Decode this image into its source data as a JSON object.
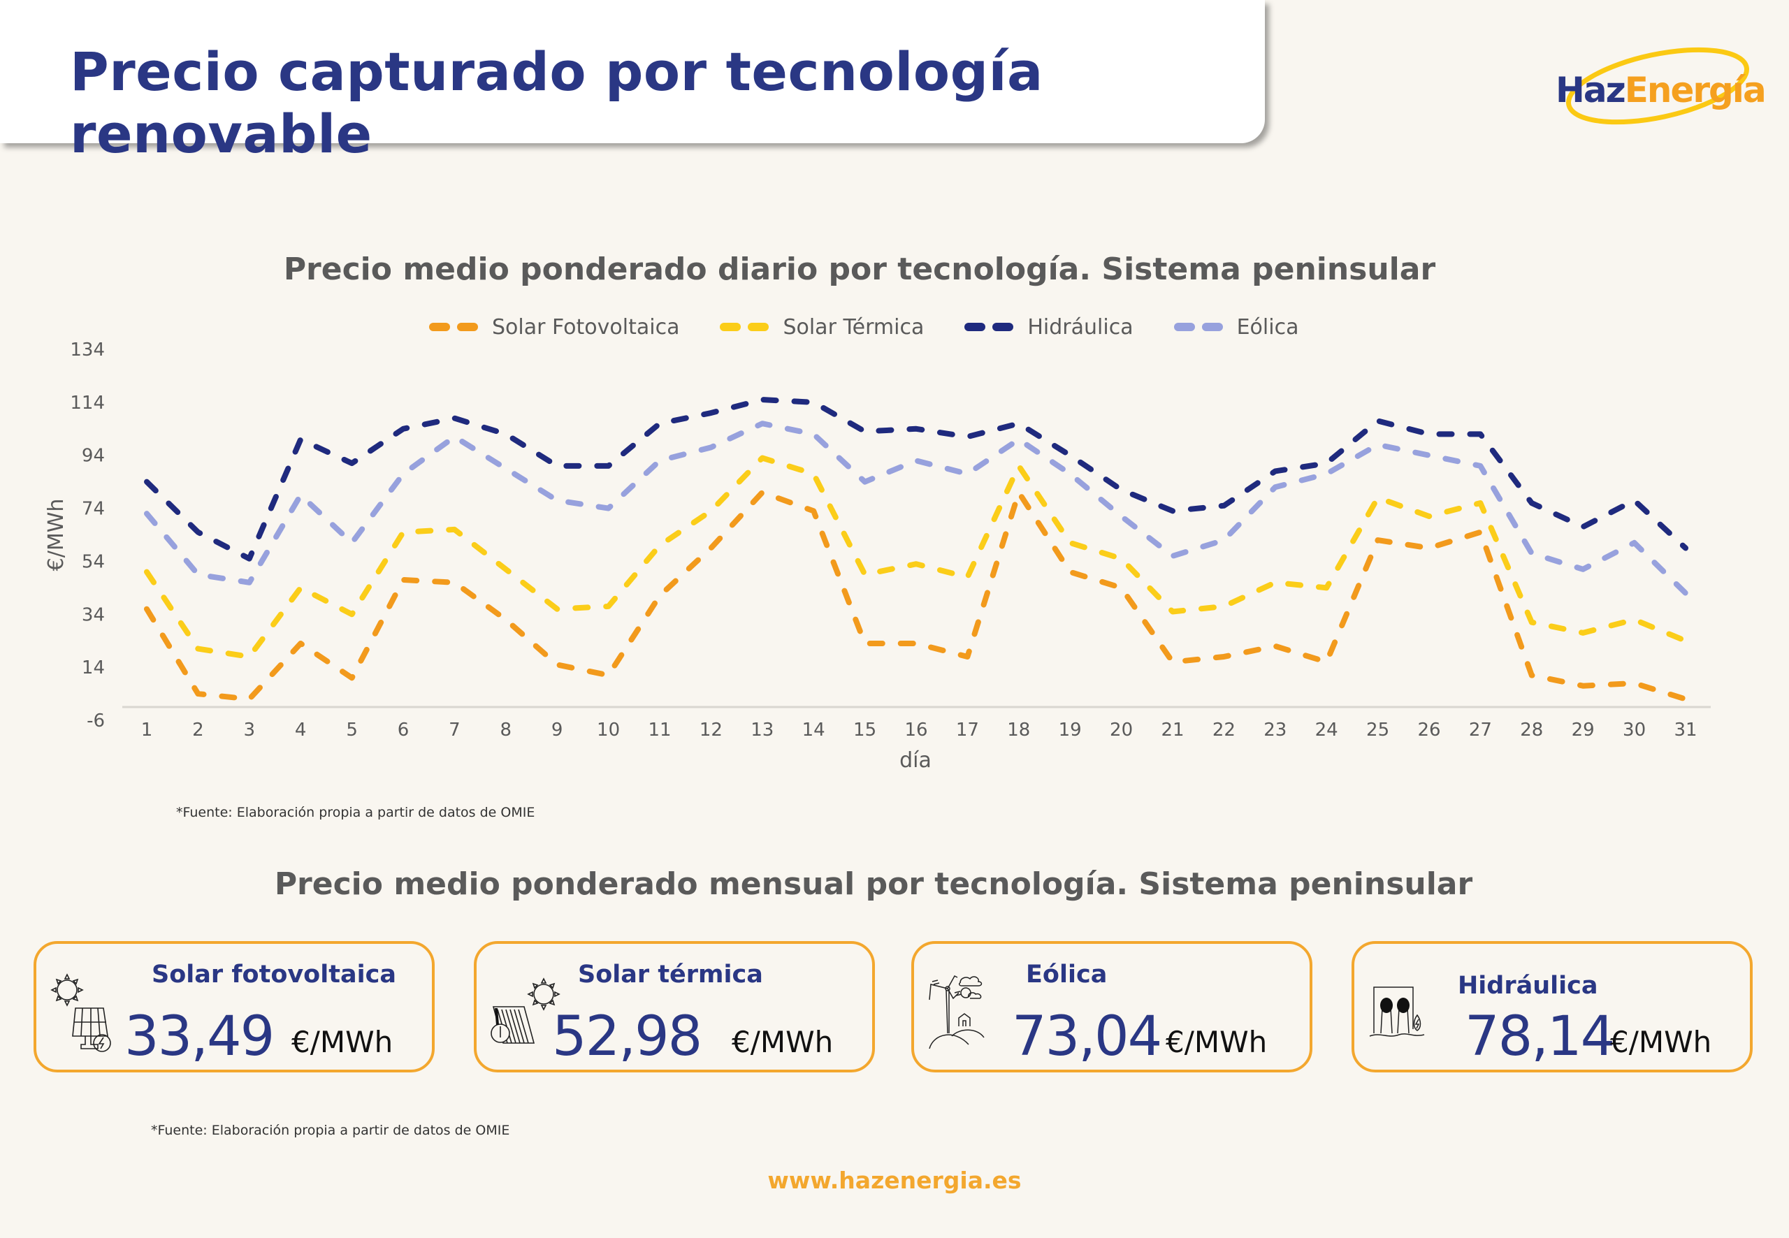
{
  "header": {
    "title": "Precio capturado por tecnología renovable",
    "logo": {
      "part1": "Haz",
      "part2": "Energía"
    }
  },
  "colors": {
    "navy": "#2a3784",
    "orange": "#f3a72e",
    "solar_fv": "#f29a1c",
    "solar_termica": "#fbcd19",
    "hidraulica": "#1f2a7e",
    "eolica": "#97a1dd",
    "background": "#f9f6f0"
  },
  "chart_data": {
    "type": "line",
    "title": "Precio medio ponderado diario por tecnología. Sistema peninsular",
    "xlabel": "día",
    "ylabel": "€/MWh",
    "ylim": [
      -6,
      134
    ],
    "yticks": [
      134,
      114,
      94,
      74,
      54,
      34,
      14,
      -6
    ],
    "x": [
      1,
      2,
      3,
      4,
      5,
      6,
      7,
      8,
      9,
      10,
      11,
      12,
      13,
      14,
      15,
      16,
      17,
      18,
      19,
      20,
      21,
      22,
      23,
      24,
      25,
      26,
      27,
      28,
      29,
      30,
      31
    ],
    "grid": false,
    "legend_position": "top-center",
    "line_style": "dashed",
    "series": [
      {
        "name": "Solar Fotovoltaica",
        "color": "#f29a1c",
        "values": [
          36,
          4,
          2,
          23,
          10,
          47,
          46,
          32,
          15,
          11,
          41,
          59,
          80,
          73,
          23,
          23,
          18,
          80,
          50,
          44,
          16,
          18,
          22,
          16,
          62,
          59,
          65,
          11,
          7,
          8,
          2
        ]
      },
      {
        "name": "Solar Térmica",
        "color": "#fbcd19",
        "values": [
          50,
          21,
          18,
          44,
          34,
          65,
          66,
          51,
          36,
          37,
          60,
          73,
          93,
          87,
          49,
          53,
          48,
          90,
          61,
          55,
          35,
          37,
          46,
          44,
          78,
          71,
          76,
          31,
          27,
          32,
          24
        ]
      },
      {
        "name": "Hidráulica",
        "color": "#1f2a7e",
        "values": [
          84,
          65,
          55,
          100,
          91,
          104,
          108,
          102,
          90,
          90,
          106,
          110,
          115,
          114,
          103,
          104,
          101,
          106,
          94,
          81,
          73,
          75,
          88,
          91,
          107,
          102,
          102,
          76,
          67,
          77,
          59
        ]
      },
      {
        "name": "Eólica",
        "color": "#97a1dd",
        "values": [
          72,
          49,
          46,
          79,
          61,
          87,
          101,
          89,
          77,
          74,
          92,
          97,
          106,
          102,
          84,
          92,
          87,
          100,
          87,
          71,
          56,
          62,
          82,
          87,
          98,
          94,
          90,
          57,
          51,
          61,
          42
        ]
      }
    ]
  },
  "source_note": "*Fuente:  Elaboración propia a partir de datos de OMIE",
  "monthly": {
    "title": "Precio medio ponderado mensual por tecnología. Sistema peninsular",
    "cards": [
      {
        "label": "Solar fotovoltaica",
        "value": "33,49",
        "unit": "€/MWh",
        "icon": "solar-panel-icon"
      },
      {
        "label": "Solar térmica",
        "value": "52,98",
        "unit": "€/MWh",
        "icon": "solar-thermal-icon"
      },
      {
        "label": "Eólica",
        "value": "73,04",
        "unit": "€/MWh",
        "icon": "wind-turbine-icon"
      },
      {
        "label": "Hidráulica",
        "value": "78,14",
        "unit": "€/MWh",
        "icon": "hydro-dam-icon"
      }
    ],
    "source_note": "*Fuente:  Elaboración propia a partir de datos de OMIE"
  },
  "footer": {
    "website": "www.hazenergia.es"
  }
}
